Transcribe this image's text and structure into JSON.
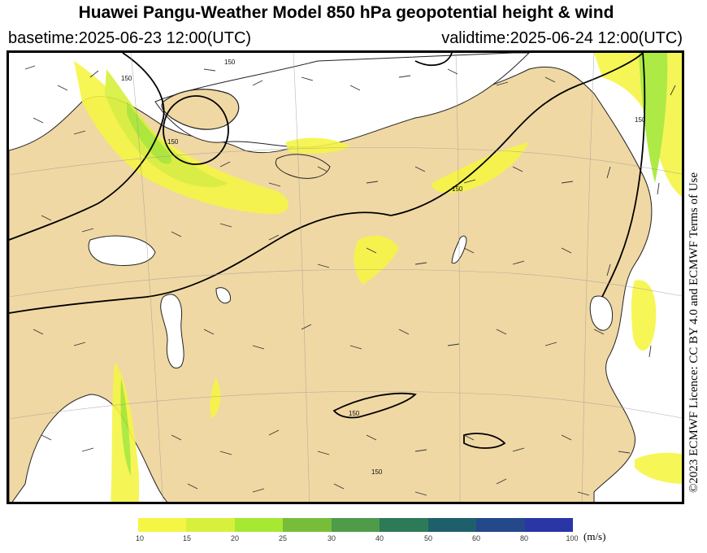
{
  "header": {
    "title": "Huawei Pangu-Weather Model 850 hPa geopotential height & wind",
    "basetime": "basetime:2025-06-23 12:00(UTC)",
    "validtime": "validtime:2025-06-24 12:00(UTC)"
  },
  "licence": "©2023 ECMWF Licence: CC BY 4.0 and ECMWF Terms of Use",
  "colorbar": {
    "unit": "(m/s)",
    "ticks": [
      "10",
      "15",
      "20",
      "25",
      "30",
      "40",
      "50",
      "60",
      "80",
      "100"
    ],
    "colors": [
      "#f5f545",
      "#d8f03c",
      "#a6e832",
      "#78bd3a",
      "#4f9b4a",
      "#2c7a58",
      "#1f5f6b",
      "#24488a",
      "#2a35a6"
    ]
  },
  "map": {
    "land_color": "#f0d8a4",
    "sea_color": "#ffffff",
    "contour_labels": [
      "150",
      "150",
      "150",
      "150",
      "150",
      "150",
      "150"
    ]
  }
}
